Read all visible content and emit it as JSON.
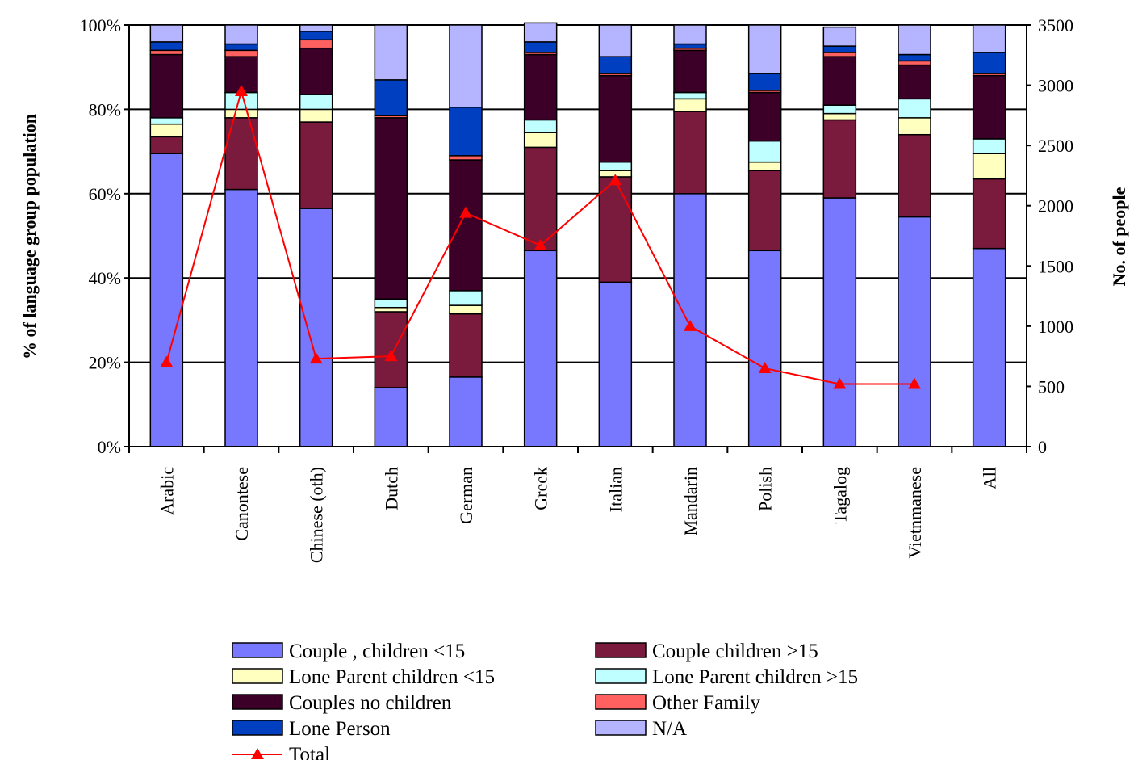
{
  "chart_data": {
    "type": "bar",
    "stacked": "percent",
    "ylabel": "% of language group population",
    "y2label": "No. of people",
    "ylim": [
      0,
      100
    ],
    "y2lim": [
      0,
      3500
    ],
    "yticks": [
      "0%",
      "20%",
      "40%",
      "60%",
      "80%",
      "100%"
    ],
    "y2ticks": [
      "0",
      "500",
      "1000",
      "1500",
      "2000",
      "2500",
      "3000",
      "3500"
    ],
    "grid": true,
    "legend_position": "bottom",
    "categories": [
      "Arabic",
      "Canontese",
      "Chinese (oth)",
      "Dutch",
      "German",
      "Greek",
      "Italian",
      "Mandarin",
      "Polish",
      "Tagalog",
      "Vietnmanese",
      "All"
    ],
    "series": [
      {
        "name": "Couple , children <15",
        "color": "#7878ff",
        "values": [
          69.5,
          61,
          56.5,
          14,
          16.5,
          46.5,
          39,
          60,
          46.5,
          59,
          54.5,
          47
        ]
      },
      {
        "name": "Couple children >15",
        "color": "#7a1a3c",
        "values": [
          4,
          17,
          20.5,
          18,
          15,
          24.5,
          25,
          19.5,
          19,
          18.5,
          19.5,
          16.5
        ]
      },
      {
        "name": "Lone Parent children <15",
        "color": "#ffffc0",
        "values": [
          3,
          2,
          3,
          1,
          2,
          3.5,
          1.5,
          3,
          2,
          1.5,
          4,
          6
        ]
      },
      {
        "name": "Lone Parent children >15",
        "color": "#c0ffff",
        "values": [
          1.5,
          4,
          3.5,
          2,
          3.5,
          3,
          2,
          1.5,
          5,
          2,
          4.5,
          3.5
        ]
      },
      {
        "name": "Couples no children",
        "color": "#3c0028",
        "values": [
          15,
          8.5,
          11,
          43,
          31,
          15.5,
          20.5,
          10,
          11.5,
          11.5,
          8,
          15
        ]
      },
      {
        "name": "Other Family",
        "color": "#ff6060",
        "values": [
          1,
          1.5,
          2,
          0.5,
          1,
          0.5,
          0.5,
          0.5,
          0.5,
          1,
          1,
          0.5
        ]
      },
      {
        "name": "Lone Person",
        "color": "#0040c0",
        "values": [
          2,
          1.5,
          2,
          8.5,
          11.5,
          2.5,
          4,
          1,
          4,
          1.5,
          1.5,
          5
        ]
      },
      {
        "name": "N/A",
        "color": "#b4b4ff",
        "values": [
          4,
          4.5,
          1.5,
          13,
          19.5,
          4.5,
          7.5,
          4.5,
          11.5,
          4.5,
          7,
          6.5
        ]
      }
    ],
    "line_series": {
      "name": "Total",
      "color": "#ff0000",
      "axis": "right",
      "values": [
        700,
        2950,
        730,
        750,
        1940,
        1670,
        2210,
        1000,
        650,
        520,
        520,
        null
      ]
    }
  }
}
